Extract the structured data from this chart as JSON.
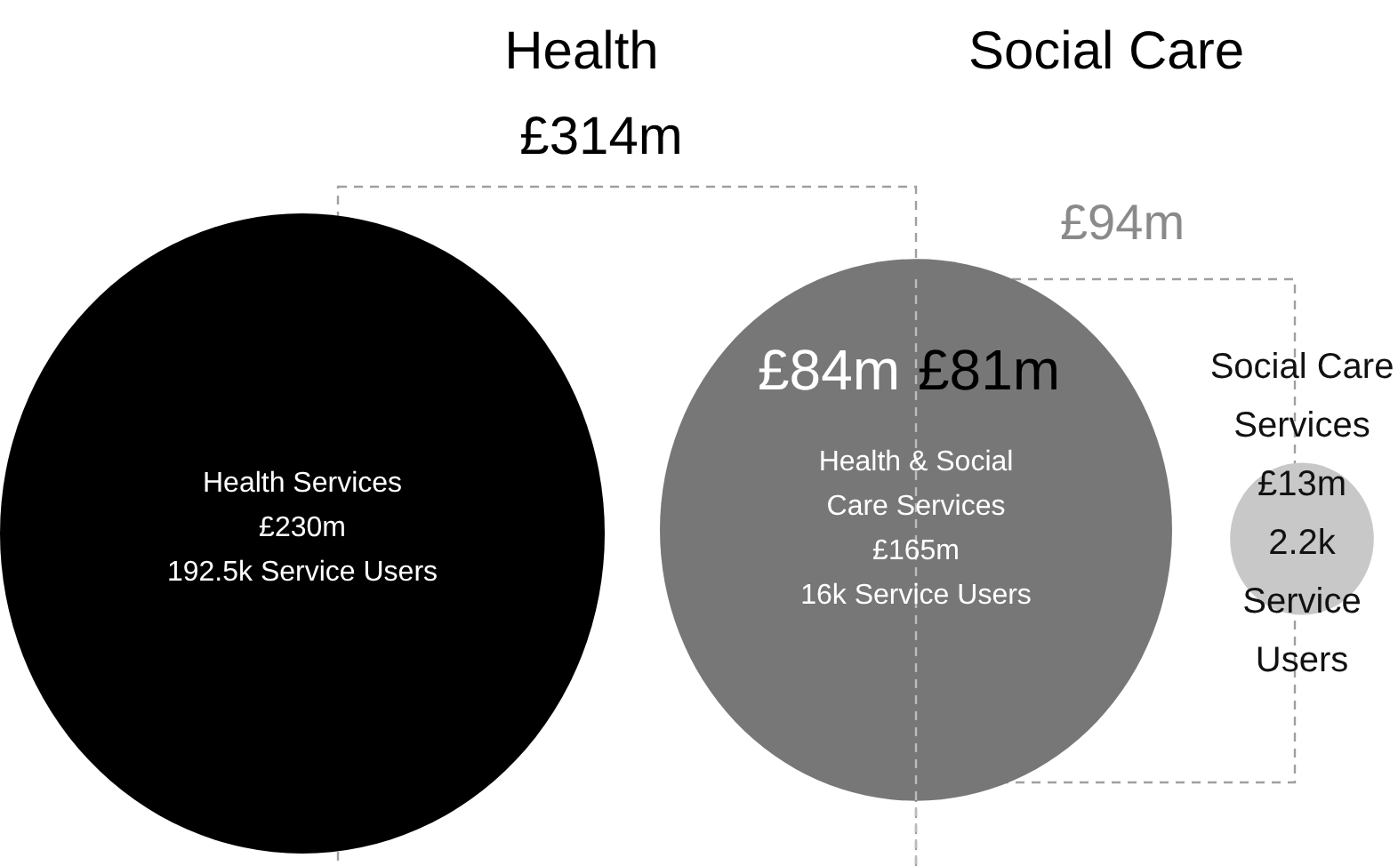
{
  "chart_data": {
    "type": "other",
    "categories": [
      "Health Services",
      "Health & Social Care Services",
      "Social Care Services"
    ],
    "values": [
      230,
      165,
      13
    ],
    "value_labels": [
      "£230m",
      "£165m",
      "£13m"
    ],
    "colors": [
      "#000000",
      "#777777",
      "#c8c8c8"
    ],
    "annotations": [
      "Health",
      "£314m",
      "Social Care",
      "£94m",
      "£84m",
      "£81m",
      "192.5k Service Users",
      "16k Service Users",
      "2.2k Service Users"
    ]
  }
}
